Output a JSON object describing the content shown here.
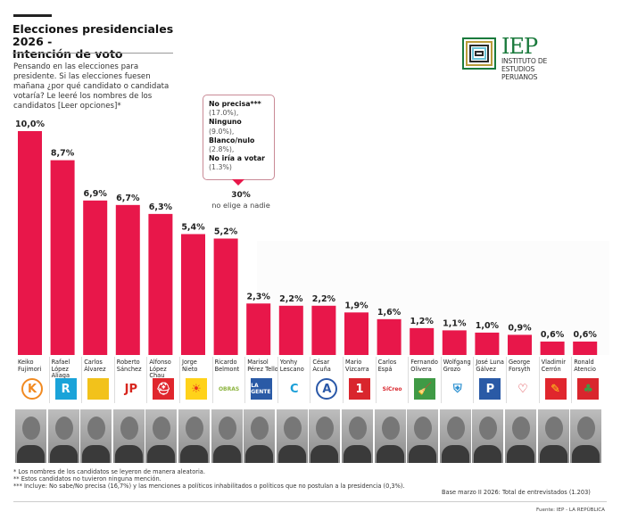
{
  "header": {
    "title_line1": "Elecciones presidenciales 2026 -",
    "title_line2": "Intención de voto",
    "question": "Pensando en las elecciones para presidente. Si las elecciones fuesen mañana ¿por qué candidato o candidata votaría? Le leeré los nombres de los candidatos [Leer opciones]*"
  },
  "logo": {
    "acronym": "IEP",
    "line1": "INSTITUTO DE",
    "line2": "ESTUDIOS",
    "line3": "PERUANOS",
    "color": "#1a7a3c"
  },
  "callout": {
    "items": [
      {
        "label": "No precisa***",
        "value": "(17.0%),"
      },
      {
        "label": "Ninguno",
        "value": "(9.0%),"
      },
      {
        "label": "Blanco/nulo",
        "value": "(2.8%),"
      },
      {
        "label": "No iría a votar",
        "value": "(1.3%)"
      }
    ],
    "total": "30%",
    "note": "no elige a nadie"
  },
  "chart_data": {
    "type": "bar",
    "title": "Elecciones presidenciales 2026 - Intención de voto",
    "xlabel": "",
    "ylabel": "",
    "ylim": [
      0,
      10
    ],
    "grid": false,
    "bar_color": "#e8174a",
    "categories": [
      "Keiko Fujimori",
      "Rafael López Aliaga",
      "Carlos Álvarez",
      "Roberto Sánchez",
      "Alfonso López Chau",
      "Jorge Nieto",
      "Ricardo Belmont",
      "Marisol Pérez Tello",
      "Yonhy Lescano",
      "César Acuña",
      "Mario Vizcarra",
      "Carlos Espá",
      "Fernando Olivera",
      "Wolfgang Grozo",
      "José Luna Gálvez",
      "George Forsyth",
      "Vladimir Cerrón",
      "Ronald Atencio"
    ],
    "values": [
      10.0,
      8.7,
      6.9,
      6.7,
      6.3,
      5.4,
      5.2,
      2.3,
      2.2,
      2.2,
      1.9,
      1.6,
      1.2,
      1.1,
      1.0,
      0.9,
      0.6,
      0.6
    ],
    "value_labels": [
      "10,0%",
      "8,7%",
      "6,9%",
      "6,7%",
      "6,3%",
      "5,4%",
      "5,2%",
      "2,3%",
      "2,2%",
      "2,2%",
      "1,9%",
      "1,6%",
      "1,2%",
      "1,1%",
      "1,0%",
      "0,9%",
      "0,6%",
      "0,6%"
    ]
  },
  "candidates": [
    {
      "name": "Keiko Fujimori",
      "logo_icon": "letter-k-orange-circle-icon",
      "logo_text": "K",
      "fg": "#f18a21",
      "bg": "#fff"
    },
    {
      "name": "Rafael López Aliaga",
      "logo_icon": "letter-r-blue-square-icon",
      "logo_text": "R",
      "fg": "#fff",
      "bg": "#1aa3d9"
    },
    {
      "name": "Carlos Álvarez",
      "logo_icon": "road-yellow-square-icon",
      "logo_text": "",
      "fg": "#222",
      "bg": "#f2c21b"
    },
    {
      "name": "Roberto Sánchez",
      "logo_icon": "jp-green-red-icon",
      "logo_text": "JP",
      "fg": "#d7261e",
      "bg": "#fff"
    },
    {
      "name": "Alfonso López Chau",
      "logo_icon": "helmet-red-square-icon",
      "logo_text": "⛑",
      "fg": "#fff",
      "bg": "#e0262d"
    },
    {
      "name": "Jorge Nieto",
      "logo_icon": "sun-face-icon",
      "logo_text": "☀",
      "fg": "#e8301c",
      "bg": "#ffd21a"
    },
    {
      "name": "Ricardo Belmont",
      "logo_icon": "obras-text-icon",
      "logo_text": "OBRAS",
      "fg": "#8cb43f",
      "bg": "#fff"
    },
    {
      "name": "Marisol Pérez Tello",
      "logo_icon": "primero-la-gente-icon",
      "logo_text": "LA GENTE",
      "fg": "#fff",
      "bg": "#2a5aa6"
    },
    {
      "name": "Yonhy Lescano",
      "logo_icon": "c-multicolor-icon",
      "logo_text": "C",
      "fg": "#1a9fd8",
      "bg": "#fff"
    },
    {
      "name": "César Acuña",
      "logo_icon": "letter-a-circle-icon",
      "logo_text": "A",
      "fg": "#2a58a8",
      "bg": "#fff"
    },
    {
      "name": "Mario Vizcarra",
      "logo_icon": "number-1-red-icon",
      "logo_text": "1",
      "fg": "#fff",
      "bg": "#d9262d"
    },
    {
      "name": "Carlos Espá",
      "logo_icon": "si-creo-candle-icon",
      "logo_text": "SíCreo",
      "fg": "#d9262d",
      "bg": "#fff"
    },
    {
      "name": "Fernando Olivera",
      "logo_icon": "broom-green-icon",
      "logo_text": "🧹",
      "fg": "#fff",
      "bg": "#3f9a45"
    },
    {
      "name": "Wolfgang Grozo",
      "logo_icon": "shield-blue-icon",
      "logo_text": "⛨",
      "fg": "#2a8fd0",
      "bg": "#fff"
    },
    {
      "name": "José Luna Gálvez",
      "logo_icon": "letter-p-blue-icon",
      "logo_text": "P",
      "fg": "#fff",
      "bg": "#2a5aa6"
    },
    {
      "name": "George Forsyth",
      "logo_icon": "heart-peru-icon",
      "logo_text": "♡",
      "fg": "#d9262d",
      "bg": "#fff"
    },
    {
      "name": "Vladimir Cerrón",
      "logo_icon": "pencil-red-icon",
      "logo_text": "✎",
      "fg": "#ffd21a",
      "bg": "#e0262d"
    },
    {
      "name": "Ronald Atencio",
      "logo_icon": "leaf-green-red-icon",
      "logo_text": "♣",
      "fg": "#3f9a45",
      "bg": "#d9262d"
    }
  ],
  "footnotes": {
    "note1": "* Los nombres de los candidatos se leyeron de manera aleatoria.",
    "note2": "** Estos candidatos no tuvieron ninguna mención.",
    "note3": "*** Incluye: No sabe/No precisa (16,7%) y las menciones a políticos inhabilitados o políticos que no postulan a la presidencia (0,3%).",
    "base": "Base marzo II 2026: Total de entrevistados (1.203)",
    "source": "Fuente: IEP - LA REPÚBLICA"
  }
}
